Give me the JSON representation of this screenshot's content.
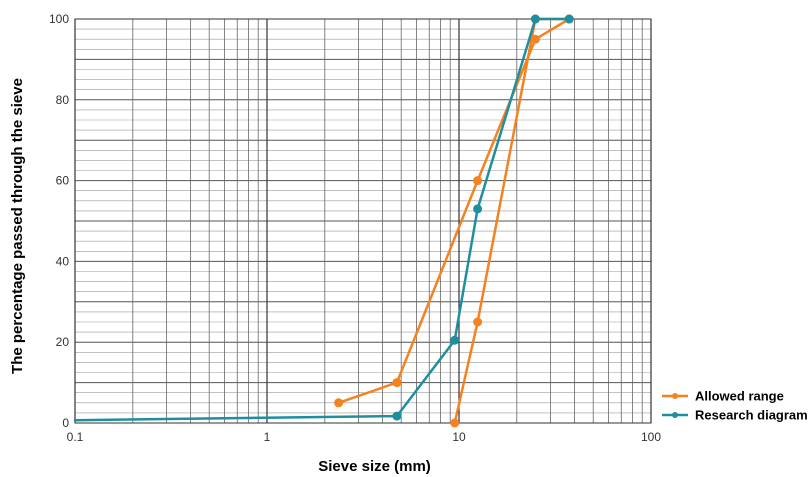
{
  "chart_data": {
    "type": "line",
    "title": "",
    "xlabel": "Sieve size (mm)",
    "ylabel": "The percentage passed through the sieve",
    "x_scale": "log",
    "xlim": [
      0.1,
      100
    ],
    "ylim": [
      0,
      100
    ],
    "x_ticks": [
      {
        "value": 0.1,
        "label": "0.1"
      },
      {
        "value": 1,
        "label": "1"
      },
      {
        "value": 10,
        "label": "10"
      },
      {
        "value": 100,
        "label": "100"
      }
    ],
    "y_ticks": [
      {
        "value": 0,
        "label": "0"
      },
      {
        "value": 20,
        "label": "20"
      },
      {
        "value": 40,
        "label": "40"
      },
      {
        "value": 60,
        "label": "60"
      },
      {
        "value": 80,
        "label": "80"
      },
      {
        "value": 100,
        "label": "100"
      }
    ],
    "grid": true,
    "legend_position": "bottom-right",
    "series": [
      {
        "name": "Allowed range",
        "color": "#f5821f",
        "segments": [
          {
            "points": [
              [
                2.36,
                5
              ],
              [
                4.75,
                10
              ],
              [
                12.5,
                60
              ],
              [
                25,
                95
              ],
              [
                37.5,
                100
              ]
            ]
          },
          {
            "points": [
              [
                9.5,
                0
              ],
              [
                12.5,
                25
              ],
              [
                25,
                100
              ],
              [
                37.5,
                100
              ]
            ]
          }
        ]
      },
      {
        "name": "Research diagram",
        "color": "#1f8fa0",
        "segments": [
          {
            "points": [
              [
                0.075,
                0.7
              ],
              [
                4.75,
                1.7
              ],
              [
                9.5,
                20.5
              ],
              [
                12.5,
                53
              ],
              [
                25,
                100
              ],
              [
                37.5,
                100
              ]
            ]
          }
        ]
      }
    ]
  }
}
